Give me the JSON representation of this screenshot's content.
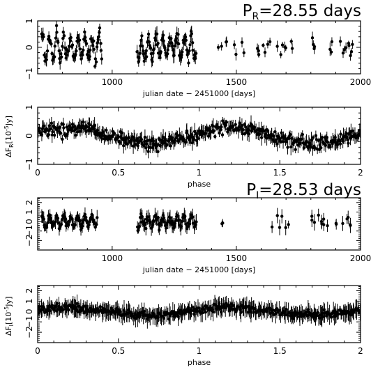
{
  "figure": {
    "ylabel_top": {
      "main": "ΔF",
      "sub": "R",
      "rest": "[10",
      "exp": "-5",
      "unit": "Jy]"
    },
    "ylabel_bottom": {
      "main": "ΔF",
      "sub": "I",
      "rest": "[10",
      "exp": "-5",
      "unit": "Jy]"
    },
    "colors": {
      "axis": "#000000",
      "data": "#000000",
      "background": "#ffffff"
    }
  },
  "chart_data": [
    {
      "type": "scatter",
      "panel": "r-band-light-curve",
      "period_label": {
        "prefix": "P",
        "sub": "R",
        "text": "=28.55 days"
      },
      "xlabel": "julian date − 2451000 [days]",
      "xlim": [
        700,
        2000
      ],
      "ylim": [
        -1,
        1
      ],
      "xticks": [
        1000,
        1500,
        2000
      ],
      "xtick_labels": [
        "1000",
        "1500",
        "2000"
      ],
      "yticks": [
        -1,
        0,
        1
      ],
      "ytick_labels": [
        "−1",
        "0",
        "1"
      ],
      "error_bars": true,
      "segments": [
        {
          "x_start": 715,
          "x_end": 960,
          "density": "dense",
          "amplitude": 0.55,
          "spread": 0.2,
          "error": 0.15,
          "count": 95
        },
        {
          "x_start": 1100,
          "x_end": 1340,
          "density": "dense",
          "amplitude": 0.5,
          "spread": 0.25,
          "error": 0.17,
          "count": 95
        },
        {
          "x_start": 1400,
          "x_end": 1730,
          "density": "sparse",
          "amplitude": 0.3,
          "spread": 0.15,
          "error": 0.13,
          "count": 22
        },
        {
          "x_start": 1800,
          "x_end": 1970,
          "density": "sparse",
          "amplitude": 0.3,
          "spread": 0.2,
          "error": 0.15,
          "count": 16
        }
      ]
    },
    {
      "type": "scatter",
      "panel": "r-band-phased",
      "xlabel": "phase",
      "xlim": [
        0,
        2
      ],
      "ylim": [
        -1,
        1
      ],
      "xticks": [
        0,
        0.5,
        1,
        1.5,
        2
      ],
      "xtick_labels": [
        "0",
        "0.5",
        "1",
        "1.5",
        "2"
      ],
      "yticks": [
        -1,
        0,
        1
      ],
      "ytick_labels": [
        "−1",
        "0",
        "1"
      ],
      "error_bars": true,
      "phased": {
        "count": 440,
        "amplitude": 0.35,
        "spread": 0.2,
        "error": 0.15
      }
    },
    {
      "type": "scatter",
      "panel": "i-band-light-curve",
      "period_label": {
        "prefix": "P",
        "sub": "I",
        "text": "=28.53 days"
      },
      "xlabel": "julian date − 2451000 [days]",
      "xlim": [
        700,
        2000
      ],
      "ylim": [
        -3,
        2.5
      ],
      "xticks": [
        1000,
        1500,
        2000
      ],
      "xtick_labels": [
        "1000",
        "1500",
        "2000"
      ],
      "yticks": [
        -2,
        -1,
        0,
        1,
        2
      ],
      "ytick_labels": [
        "−2",
        "−1",
        "0",
        "1",
        "2"
      ],
      "error_bars": true,
      "segments": [
        {
          "x_start": 715,
          "x_end": 940,
          "density": "dense",
          "amplitude": 0.6,
          "spread": 0.35,
          "error": 0.45,
          "count": 85
        },
        {
          "x_start": 1100,
          "x_end": 1340,
          "density": "dense",
          "amplitude": 0.6,
          "spread": 0.35,
          "error": 0.5,
          "count": 85
        },
        {
          "x_start": 1440,
          "x_end": 1450,
          "density": "sparse",
          "amplitude": 0.3,
          "spread": 0.2,
          "error": 0.4,
          "count": 2
        },
        {
          "x_start": 1640,
          "x_end": 1710,
          "density": "sparse",
          "amplitude": 0.8,
          "spread": 0.4,
          "error": 0.6,
          "count": 6
        },
        {
          "x_start": 1800,
          "x_end": 1970,
          "density": "sparse",
          "amplitude": 0.5,
          "spread": 0.4,
          "error": 0.5,
          "count": 16
        }
      ]
    },
    {
      "type": "scatter",
      "panel": "i-band-phased",
      "xlabel": "phase",
      "xlim": [
        0,
        2
      ],
      "ylim": [
        -3,
        2.5
      ],
      "xticks": [
        0,
        0.5,
        1,
        1.5,
        2
      ],
      "xtick_labels": [
        "0",
        "0.5",
        "1",
        "1.5",
        "2"
      ],
      "yticks": [
        -2,
        -1,
        0,
        1,
        2
      ],
      "ytick_labels": [
        "−2",
        "−1",
        "0",
        "1",
        "2"
      ],
      "error_bars": true,
      "phased": {
        "count": 420,
        "amplitude": 0.45,
        "spread": 0.35,
        "error": 0.5
      }
    }
  ]
}
